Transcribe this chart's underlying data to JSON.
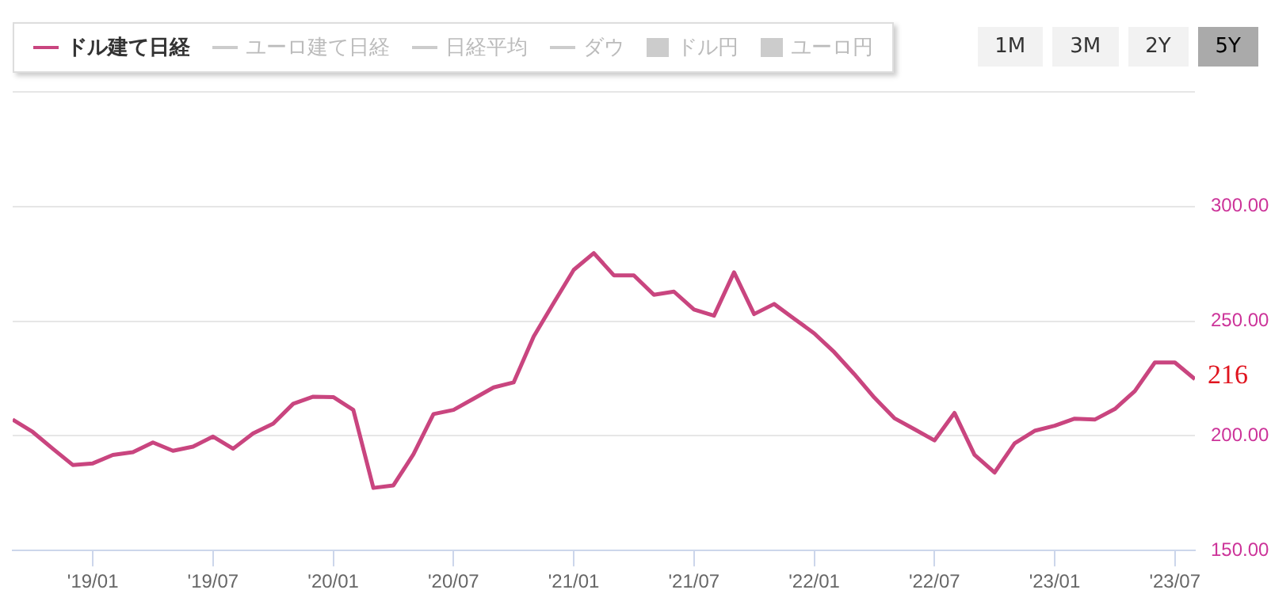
{
  "chart_data": {
    "type": "line",
    "x": [
      "2018-09",
      "2018-10",
      "2018-11",
      "2018-12",
      "2019-01",
      "2019-02",
      "2019-03",
      "2019-04",
      "2019-05",
      "2019-06",
      "2019-07",
      "2019-08",
      "2019-09",
      "2019-10",
      "2019-11",
      "2019-12",
      "2020-01",
      "2020-02",
      "2020-03",
      "2020-04",
      "2020-05",
      "2020-06",
      "2020-07",
      "2020-08",
      "2020-09",
      "2020-10",
      "2020-11",
      "2020-12",
      "2021-01",
      "2021-02",
      "2021-03",
      "2021-04",
      "2021-05",
      "2021-06",
      "2021-07",
      "2021-08",
      "2021-09",
      "2021-10",
      "2021-11",
      "2021-12",
      "2022-01",
      "2022-02",
      "2022-03",
      "2022-04",
      "2022-05",
      "2022-06",
      "2022-07",
      "2022-08",
      "2022-09",
      "2022-10",
      "2022-11",
      "2022-12",
      "2023-01",
      "2023-02",
      "2023-03",
      "2023-04",
      "2023-05",
      "2023-06",
      "2023-07",
      "2023-08"
    ],
    "series": [
      {
        "name": "ドル建て日経",
        "color": "#c9457f",
        "values": [
          207.1,
          201.7,
          194.4,
          187.3,
          188,
          191.7,
          192.9,
          197.1,
          193.5,
          195.3,
          199.7,
          194.4,
          201.1,
          205.3,
          214,
          217.1,
          216.9,
          211.3,
          177.3,
          178.4,
          192,
          209.5,
          211.3,
          216.2,
          221.1,
          223.3,
          243.3,
          258,
          272.4,
          279.7,
          270,
          270,
          261.5,
          262.9,
          255.1,
          252.4,
          271.3,
          253.1,
          257.5,
          251.1,
          244.7,
          236.5,
          226.9,
          216.7,
          207.7,
          202.9,
          198,
          210,
          191.7,
          184,
          196.7,
          202.2,
          204.4,
          207.5,
          207.1,
          211.7,
          219.5,
          232,
          232,
          224.7
        ]
      },
      {
        "name": "ユーロ建て日経",
        "color": "#cccccc",
        "values": [
          null,
          null,
          null,
          null,
          null,
          null,
          null,
          null,
          null,
          null,
          null,
          null,
          null,
          null,
          null,
          null,
          null,
          null,
          null,
          null,
          null,
          null,
          null,
          null,
          null,
          null,
          null,
          null,
          null,
          null,
          null,
          null,
          null,
          null,
          null,
          null,
          null,
          null,
          null,
          null,
          null,
          null,
          null,
          null,
          null,
          null,
          null,
          null,
          null,
          null,
          null,
          null,
          null,
          null,
          null,
          null,
          null,
          null,
          null,
          null
        ]
      },
      {
        "name": "日経平均",
        "color": "#cccccc",
        "values": [
          null,
          null,
          null,
          null,
          null,
          null,
          null,
          null,
          null,
          null,
          null,
          null,
          null,
          null,
          null,
          null,
          null,
          null,
          null,
          null,
          null,
          null,
          null,
          null,
          null,
          null,
          null,
          null,
          null,
          null,
          null,
          null,
          null,
          null,
          null,
          null,
          null,
          null,
          null,
          null,
          null,
          null,
          null,
          null,
          null,
          null,
          null,
          null,
          null,
          null,
          null,
          null,
          null,
          null,
          null,
          null,
          null,
          null,
          null,
          null
        ]
      },
      {
        "name": "ダウ",
        "color": "#cccccc",
        "values": [
          null,
          null,
          null,
          null,
          null,
          null,
          null,
          null,
          null,
          null,
          null,
          null,
          null,
          null,
          null,
          null,
          null,
          null,
          null,
          null,
          null,
          null,
          null,
          null,
          null,
          null,
          null,
          null,
          null,
          null,
          null,
          null,
          null,
          null,
          null,
          null,
          null,
          null,
          null,
          null,
          null,
          null,
          null,
          null,
          null,
          null,
          null,
          null,
          null,
          null,
          null,
          null,
          null,
          null,
          null,
          null,
          null,
          null,
          null,
          null
        ]
      },
      {
        "name": "ドル円",
        "type": "area",
        "color": "#cccccc",
        "values": [
          null,
          null,
          null,
          null,
          null,
          null,
          null,
          null,
          null,
          null,
          null,
          null,
          null,
          null,
          null,
          null,
          null,
          null,
          null,
          null,
          null,
          null,
          null,
          null,
          null,
          null,
          null,
          null,
          null,
          null,
          null,
          null,
          null,
          null,
          null,
          null,
          null,
          null,
          null,
          null,
          null,
          null,
          null,
          null,
          null,
          null,
          null,
          null,
          null,
          null,
          null,
          null,
          null,
          null,
          null,
          null,
          null,
          null,
          null,
          null
        ]
      },
      {
        "name": "ユーロ円",
        "type": "area",
        "color": "#cccccc",
        "values": [
          null,
          null,
          null,
          null,
          null,
          null,
          null,
          null,
          null,
          null,
          null,
          null,
          null,
          null,
          null,
          null,
          null,
          null,
          null,
          null,
          null,
          null,
          null,
          null,
          null,
          null,
          null,
          null,
          null,
          null,
          null,
          null,
          null,
          null,
          null,
          null,
          null,
          null,
          null,
          null,
          null,
          null,
          null,
          null,
          null,
          null,
          null,
          null,
          null,
          null,
          null,
          null,
          null,
          null,
          null,
          null,
          null,
          null,
          null,
          null
        ]
      }
    ],
    "xlim": [
      "2018-09",
      "2023-08"
    ],
    "xticks": [
      {
        "value": "2019-01",
        "label": "'19/01"
      },
      {
        "value": "2019-07",
        "label": "'19/07"
      },
      {
        "value": "2020-01",
        "label": "'20/01"
      },
      {
        "value": "2020-07",
        "label": "'20/07"
      },
      {
        "value": "2021-01",
        "label": "'21/01"
      },
      {
        "value": "2021-07",
        "label": "'21/07"
      },
      {
        "value": "2022-01",
        "label": "'22/01"
      },
      {
        "value": "2022-07",
        "label": "'22/07"
      },
      {
        "value": "2023-01",
        "label": "'23/01"
      },
      {
        "value": "2023-07",
        "label": "'23/07"
      }
    ],
    "ylim": [
      150,
      350
    ],
    "yticks": [
      {
        "value": 150,
        "label": "150.00"
      },
      {
        "value": 200,
        "label": "200.00"
      },
      {
        "value": 250,
        "label": "250.00"
      },
      {
        "value": 300,
        "label": "300.00"
      },
      {
        "value": 350,
        "label": null
      }
    ],
    "grid": "y",
    "legend": "top left",
    "marker": "none",
    "line_style": "solid",
    "annotations": [
      "216",
      "1M",
      "3M",
      "2Y",
      "5Y"
    ]
  }
}
